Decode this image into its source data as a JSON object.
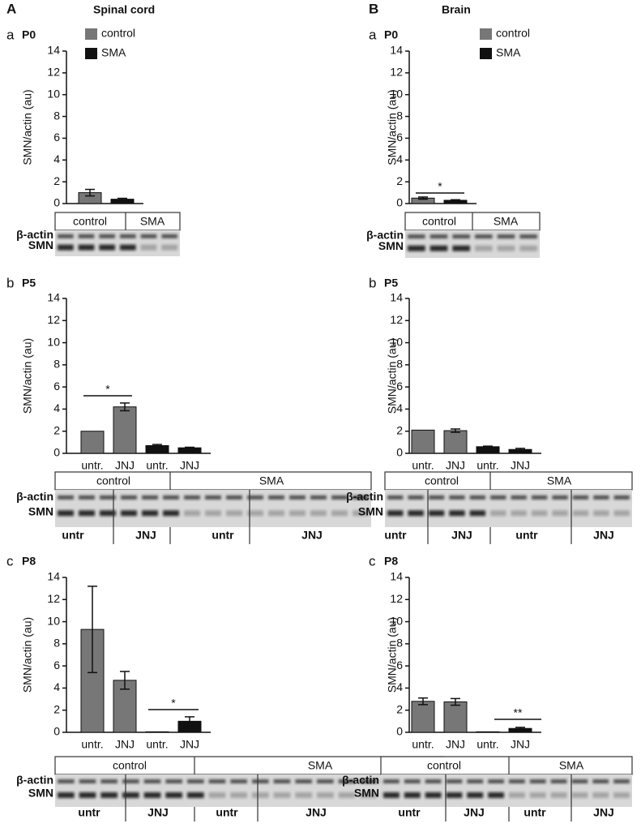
{
  "panels": [
    {
      "letter": "A",
      "title": "Spinal cord"
    },
    {
      "letter": "B",
      "title": "Brain"
    }
  ],
  "chart_data": [
    {
      "type": "bar",
      "panel": "a",
      "title": "P0",
      "y_label": "SMN/actin (au)",
      "ylim": [
        0,
        14
      ],
      "yticks": [
        0,
        2,
        4,
        6,
        8,
        10,
        12,
        14
      ],
      "series": [
        {
          "name": "control",
          "color": "#777777",
          "values": [
            1.0
          ],
          "errors": [
            0.3
          ]
        },
        {
          "name": "SMA",
          "color": "#111111",
          "values": [
            0.4
          ],
          "errors": [
            0.08
          ]
        }
      ],
      "blot": {
        "rows": [
          "β-actin",
          "SMN"
        ],
        "groups": [
          "control",
          "SMA"
        ]
      }
    },
    {
      "type": "bar",
      "panel": "b",
      "title": "P5",
      "y_label": "SMN/actin (au)",
      "ylim": [
        0,
        14
      ],
      "yticks": [
        0,
        2,
        4,
        6,
        8,
        10,
        12,
        14
      ],
      "categories": [
        "untr.",
        "JNJ",
        "untr.",
        "JNJ"
      ],
      "values": [
        2.0,
        4.2,
        0.7,
        0.5
      ],
      "errors": [
        0,
        0.35,
        0.1,
        0.05
      ],
      "colors": [
        "#777777",
        "#777777",
        "#111111",
        "#111111"
      ],
      "annotations": [
        "*"
      ],
      "blot": {
        "rows": [
          "β-actin",
          "SMN"
        ],
        "groups": [
          "control",
          "SMA"
        ],
        "subgroups": [
          "untr",
          "JNJ",
          "untr",
          "JNJ"
        ]
      }
    },
    {
      "type": "bar",
      "panel": "c",
      "title": "P8",
      "y_label": "SMN/actin (au)",
      "ylim": [
        0,
        14
      ],
      "yticks": [
        0,
        2,
        4,
        6,
        8,
        10,
        12,
        14
      ],
      "categories": [
        "untr.",
        "JNJ",
        "untr.",
        "JNJ"
      ],
      "values": [
        9.3,
        4.7,
        0.05,
        1.0
      ],
      "errors": [
        3.9,
        0.8,
        0,
        0.4
      ],
      "colors": [
        "#777777",
        "#777777",
        "#111111",
        "#111111"
      ],
      "annotations": [
        "*"
      ],
      "blot": {
        "rows": [
          "β-actin",
          "SMN"
        ],
        "groups": [
          "control",
          "SMA"
        ],
        "subgroups": [
          "untr",
          "JNJ",
          "untr",
          "JNJ"
        ]
      }
    },
    {
      "type": "bar",
      "panel": "a",
      "title": "P0",
      "y_label": "SMN/actin (au)",
      "ylim": [
        0,
        14
      ],
      "yticks": [
        0,
        2,
        4,
        6,
        8,
        10,
        12,
        14
      ],
      "series": [
        {
          "name": "control",
          "color": "#777777",
          "values": [
            0.5
          ],
          "errors": [
            0.1
          ]
        },
        {
          "name": "SMA",
          "color": "#111111",
          "values": [
            0.3
          ],
          "errors": [
            0.05
          ]
        }
      ],
      "annotations": [
        "*"
      ],
      "blot": {
        "rows": [
          "β-actin",
          "SMN"
        ],
        "groups": [
          "control",
          "SMA"
        ]
      }
    },
    {
      "type": "bar",
      "panel": "b",
      "title": "P5",
      "y_label": "SMN/actin (au)",
      "ylim": [
        0,
        14
      ],
      "yticks": [
        0,
        2,
        4,
        6,
        8,
        10,
        12,
        14
      ],
      "categories": [
        "untr.",
        "JNJ",
        "untr.",
        "JNJ"
      ],
      "values": [
        2.1,
        2.05,
        0.6,
        0.35
      ],
      "errors": [
        0,
        0.15,
        0.05,
        0.1
      ],
      "colors": [
        "#777777",
        "#777777",
        "#111111",
        "#111111"
      ],
      "blot": {
        "rows": [
          "β-actin",
          "SMN"
        ],
        "groups": [
          "control",
          "SMA"
        ],
        "subgroups": [
          "untr",
          "JNJ",
          "untr",
          "JNJ"
        ]
      }
    },
    {
      "type": "bar",
      "panel": "c",
      "title": "P8",
      "y_label": "SMN/actin (au)",
      "ylim": [
        0,
        14
      ],
      "yticks": [
        0,
        2,
        4,
        6,
        8,
        10,
        12,
        14
      ],
      "categories": [
        "untr.",
        "JNJ",
        "untr.",
        "JNJ"
      ],
      "values": [
        2.8,
        2.75,
        0.05,
        0.35
      ],
      "errors": [
        0.3,
        0.3,
        0,
        0.1
      ],
      "colors": [
        "#777777",
        "#777777",
        "#111111",
        "#111111"
      ],
      "annotations": [
        "**"
      ],
      "blot": {
        "rows": [
          "β-actin",
          "SMN"
        ],
        "groups": [
          "control",
          "SMA"
        ],
        "subgroups": [
          "untr",
          "JNJ",
          "untr",
          "JNJ"
        ]
      }
    }
  ]
}
